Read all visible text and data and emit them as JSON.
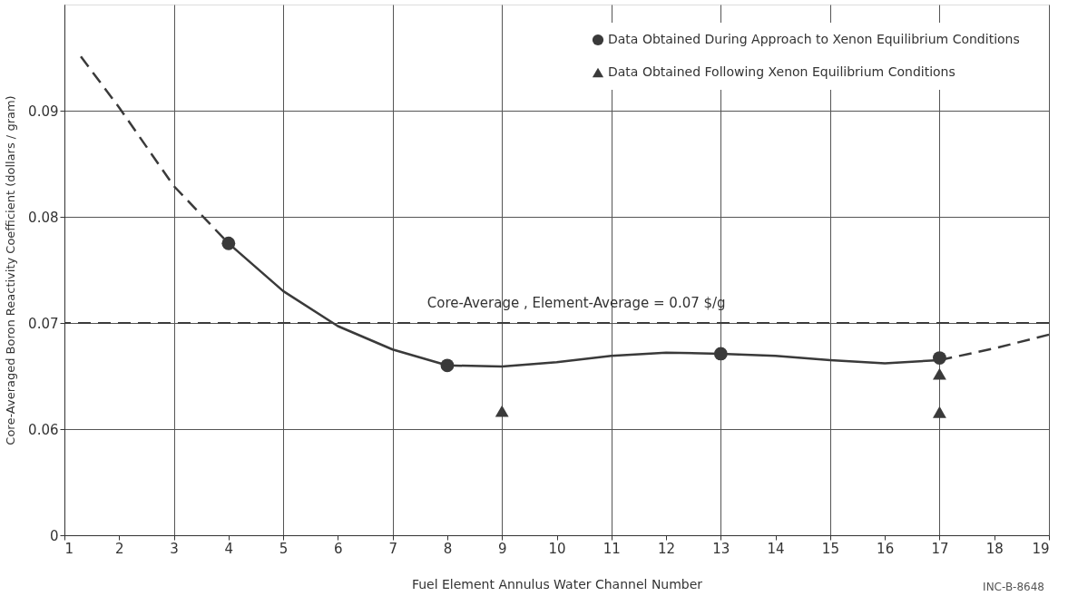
{
  "chart_data": {
    "type": "scatter",
    "xlabel": "Fuel  Element  Annulus  Water  Channel  Number",
    "ylabel": "Core-Averaged  Boron  Reactivity  Coefficient (dollars / gram)",
    "xlim": [
      1,
      19
    ],
    "xticks": [
      1,
      2,
      3,
      4,
      5,
      6,
      7,
      8,
      9,
      10,
      11,
      12,
      13,
      14,
      15,
      16,
      17,
      18,
      19
    ],
    "ylim": [
      0.05,
      0.1
    ],
    "yticks": [
      {
        "value": 0.05,
        "label": "0"
      },
      0.06,
      0.07,
      0.08,
      0.09
    ],
    "grid": true,
    "legend": "top right",
    "series": [
      {
        "name": "Data Obtained During Approach to Xenon Equilibrium Conditions",
        "type": "scatter",
        "marker": "circle",
        "color": "#3a3a3a",
        "x": [
          4,
          8,
          13,
          17
        ],
        "values": [
          0.0775,
          0.066,
          0.0671,
          0.0667
        ]
      },
      {
        "name": "Data Obtained Following Xenon Equilibrium Conditions",
        "type": "scatter",
        "marker": "triangle",
        "color": "#3a3a3a",
        "x": [
          9,
          17,
          17
        ],
        "values": [
          0.0617,
          0.0652,
          0.0616
        ]
      },
      {
        "type": "line",
        "line_style": "dashed",
        "color": "#3a3a3a",
        "x": [
          1.3,
          2,
          3,
          4
        ],
        "values": [
          0.0951,
          0.0903,
          0.0829,
          0.0775
        ]
      },
      {
        "type": "line",
        "line_style": "solid",
        "color": "#3a3a3a",
        "x": [
          4,
          5,
          6,
          7,
          8,
          9,
          10,
          11,
          12,
          13,
          14,
          15,
          16,
          17
        ],
        "values": [
          0.0775,
          0.073,
          0.0697,
          0.0675,
          0.066,
          0.0659,
          0.0663,
          0.0669,
          0.0672,
          0.0671,
          0.0669,
          0.0665,
          0.0662,
          0.0665
        ]
      },
      {
        "type": "line",
        "line_style": "dashed",
        "color": "#3a3a3a",
        "x": [
          17,
          18,
          19
        ],
        "values": [
          0.0665,
          0.0676,
          0.0689
        ]
      }
    ],
    "ref_lines": [
      {
        "axis": "y",
        "value": 0.07,
        "label": "Core-Average , Element-Average = 0.07  $/g",
        "color": "#3a3a3a",
        "line_style": "dashed"
      }
    ],
    "annotations": [
      "INC-B-8648"
    ]
  }
}
